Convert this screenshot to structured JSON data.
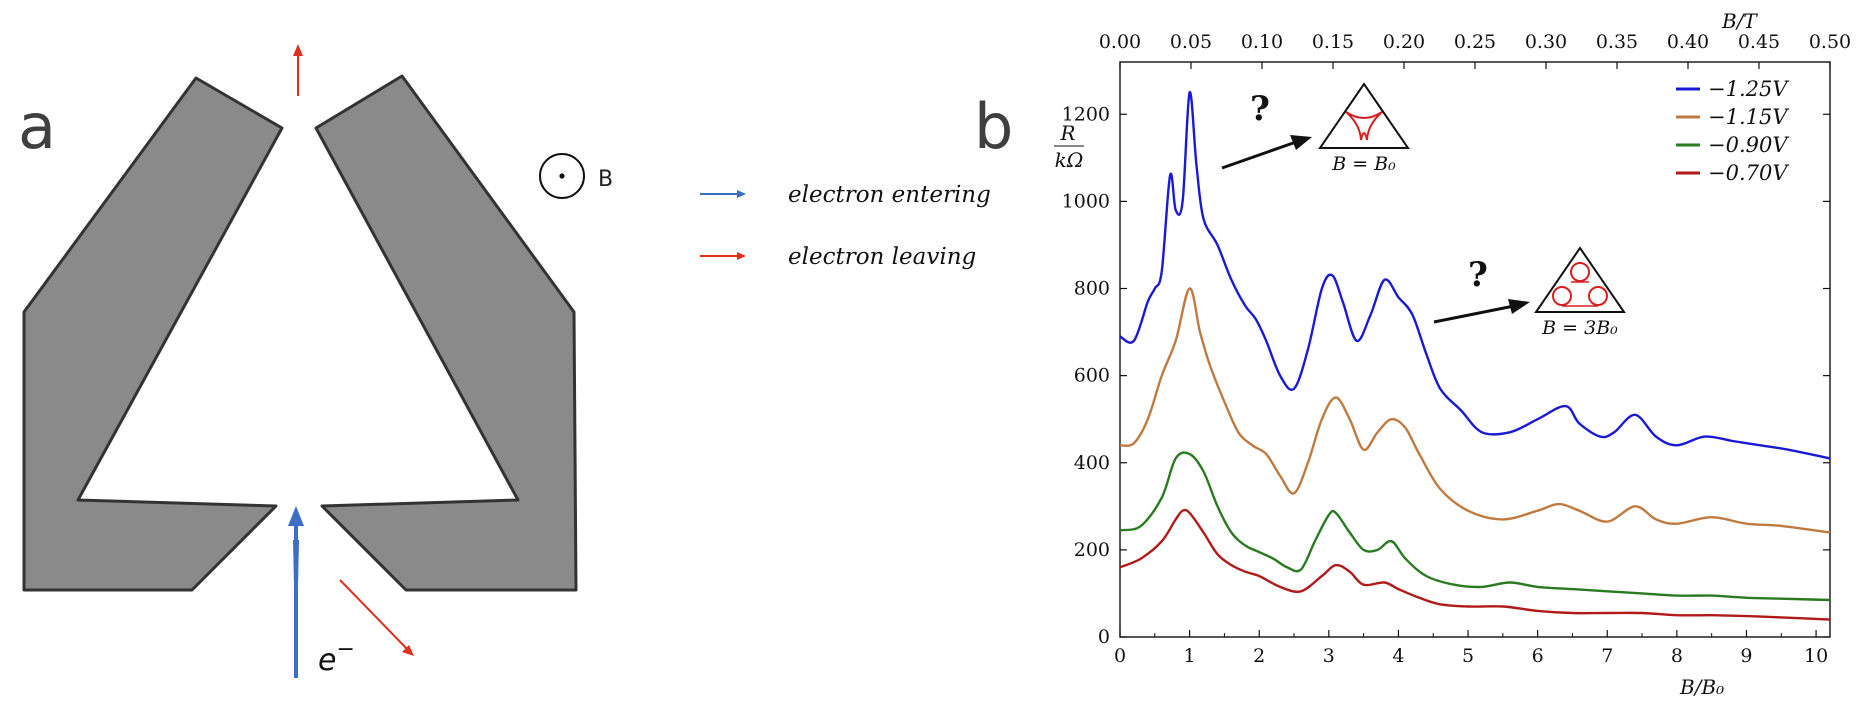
{
  "panel_a": {
    "letter": "a",
    "field_symbol": "B",
    "electron_symbol": "e",
    "electron_superscript": "−",
    "legend": [
      {
        "label": "electron entering",
        "color": "#3a6fc4"
      },
      {
        "label": "electron leaving",
        "color": "#e0301e"
      }
    ],
    "colors": {
      "device_fill": "#8a8a8a",
      "device_stroke": "#333333",
      "in_arrow": "#3a6fc4",
      "out_arrow": "#e0301e"
    }
  },
  "panel_b": {
    "letter": "b"
  },
  "chart_data": {
    "type": "line",
    "xlabel": "B/B₀",
    "ylabel_num": "R",
    "ylabel_den": "kΩ",
    "top_axis_label": "B/T",
    "xlim": [
      0,
      10.2
    ],
    "ylim": [
      0,
      1320
    ],
    "x_ticks": [
      "0",
      "1",
      "2",
      "3",
      "4",
      "5",
      "6",
      "7",
      "8",
      "9",
      "10"
    ],
    "y_ticks": [
      "0",
      "200",
      "400",
      "600",
      "800",
      "1000",
      "1200"
    ],
    "top_ticks": [
      "0.00",
      "0.05",
      "0.10",
      "0.15",
      "0.20",
      "0.25",
      "0.30",
      "0.35",
      "0.40",
      "0.45",
      "0.50"
    ],
    "top_range": [
      0,
      0.5
    ],
    "grid": false,
    "legend_position": "top-right",
    "series": [
      {
        "name": "−1.25V",
        "color": "#1a1ad6",
        "x": [
          0,
          0.2,
          0.4,
          0.5,
          0.6,
          0.72,
          0.8,
          0.9,
          1.0,
          1.1,
          1.2,
          1.4,
          1.6,
          1.8,
          1.95,
          2.1,
          2.3,
          2.5,
          2.7,
          2.9,
          3.05,
          3.2,
          3.4,
          3.6,
          3.8,
          4.0,
          4.2,
          4.4,
          4.6,
          4.9,
          5.2,
          5.6,
          6.0,
          6.4,
          6.6,
          6.9,
          7.1,
          7.4,
          7.7,
          8.0,
          8.4,
          8.8,
          9.2,
          9.6,
          10.2
        ],
        "y": [
          690,
          680,
          770,
          800,
          840,
          1060,
          980,
          1000,
          1250,
          1080,
          960,
          900,
          820,
          760,
          730,
          680,
          600,
          570,
          660,
          800,
          830,
          770,
          680,
          740,
          820,
          780,
          740,
          650,
          570,
          520,
          470,
          470,
          500,
          530,
          490,
          460,
          470,
          510,
          460,
          440,
          460,
          450,
          440,
          430,
          410
        ]
      },
      {
        "name": "−1.15V",
        "color": "#c07a40",
        "x": [
          0,
          0.2,
          0.4,
          0.6,
          0.8,
          1.0,
          1.15,
          1.3,
          1.5,
          1.7,
          1.9,
          2.1,
          2.3,
          2.5,
          2.7,
          2.9,
          3.1,
          3.3,
          3.5,
          3.7,
          3.9,
          4.1,
          4.3,
          4.6,
          5.0,
          5.5,
          6.0,
          6.3,
          6.6,
          7.0,
          7.4,
          7.7,
          8.0,
          8.5,
          9.0,
          9.5,
          10.2
        ],
        "y": [
          440,
          445,
          500,
          600,
          680,
          800,
          700,
          620,
          540,
          470,
          440,
          420,
          370,
          330,
          400,
          500,
          550,
          500,
          430,
          470,
          500,
          480,
          420,
          340,
          290,
          270,
          290,
          305,
          290,
          265,
          300,
          270,
          260,
          275,
          260,
          255,
          240
        ]
      },
      {
        "name": "−0.90V",
        "color": "#2a7a22",
        "x": [
          0,
          0.3,
          0.6,
          0.8,
          1.0,
          1.2,
          1.4,
          1.6,
          1.8,
          2.0,
          2.2,
          2.4,
          2.6,
          2.8,
          3.0,
          3.1,
          3.3,
          3.5,
          3.7,
          3.9,
          4.1,
          4.4,
          4.8,
          5.2,
          5.6,
          6.0,
          6.5,
          7.0,
          7.5,
          8.0,
          8.5,
          9.0,
          9.5,
          10.2
        ],
        "y": [
          245,
          255,
          320,
          410,
          420,
          380,
          300,
          240,
          210,
          195,
          180,
          160,
          155,
          220,
          280,
          285,
          240,
          200,
          200,
          220,
          180,
          140,
          120,
          115,
          125,
          115,
          110,
          105,
          100,
          95,
          95,
          90,
          88,
          85
        ]
      },
      {
        "name": "−0.70V",
        "color": "#b01a1a",
        "x": [
          0,
          0.3,
          0.6,
          0.8,
          0.9,
          1.0,
          1.2,
          1.4,
          1.6,
          1.8,
          2.0,
          2.3,
          2.6,
          2.9,
          3.1,
          3.3,
          3.5,
          3.8,
          4.0,
          4.3,
          4.6,
          5.0,
          5.5,
          6.0,
          6.5,
          7.0,
          7.5,
          8.0,
          8.5,
          9.0,
          9.5,
          10.2
        ],
        "y": [
          160,
          180,
          220,
          270,
          290,
          285,
          240,
          190,
          165,
          150,
          140,
          115,
          105,
          140,
          165,
          150,
          120,
          125,
          110,
          90,
          75,
          70,
          70,
          60,
          55,
          55,
          55,
          50,
          50,
          48,
          45,
          40
        ]
      }
    ],
    "annotations": [
      {
        "mark": "?",
        "label": "B = B₀"
      },
      {
        "mark": "?",
        "label": "B = 3B₀"
      }
    ]
  }
}
